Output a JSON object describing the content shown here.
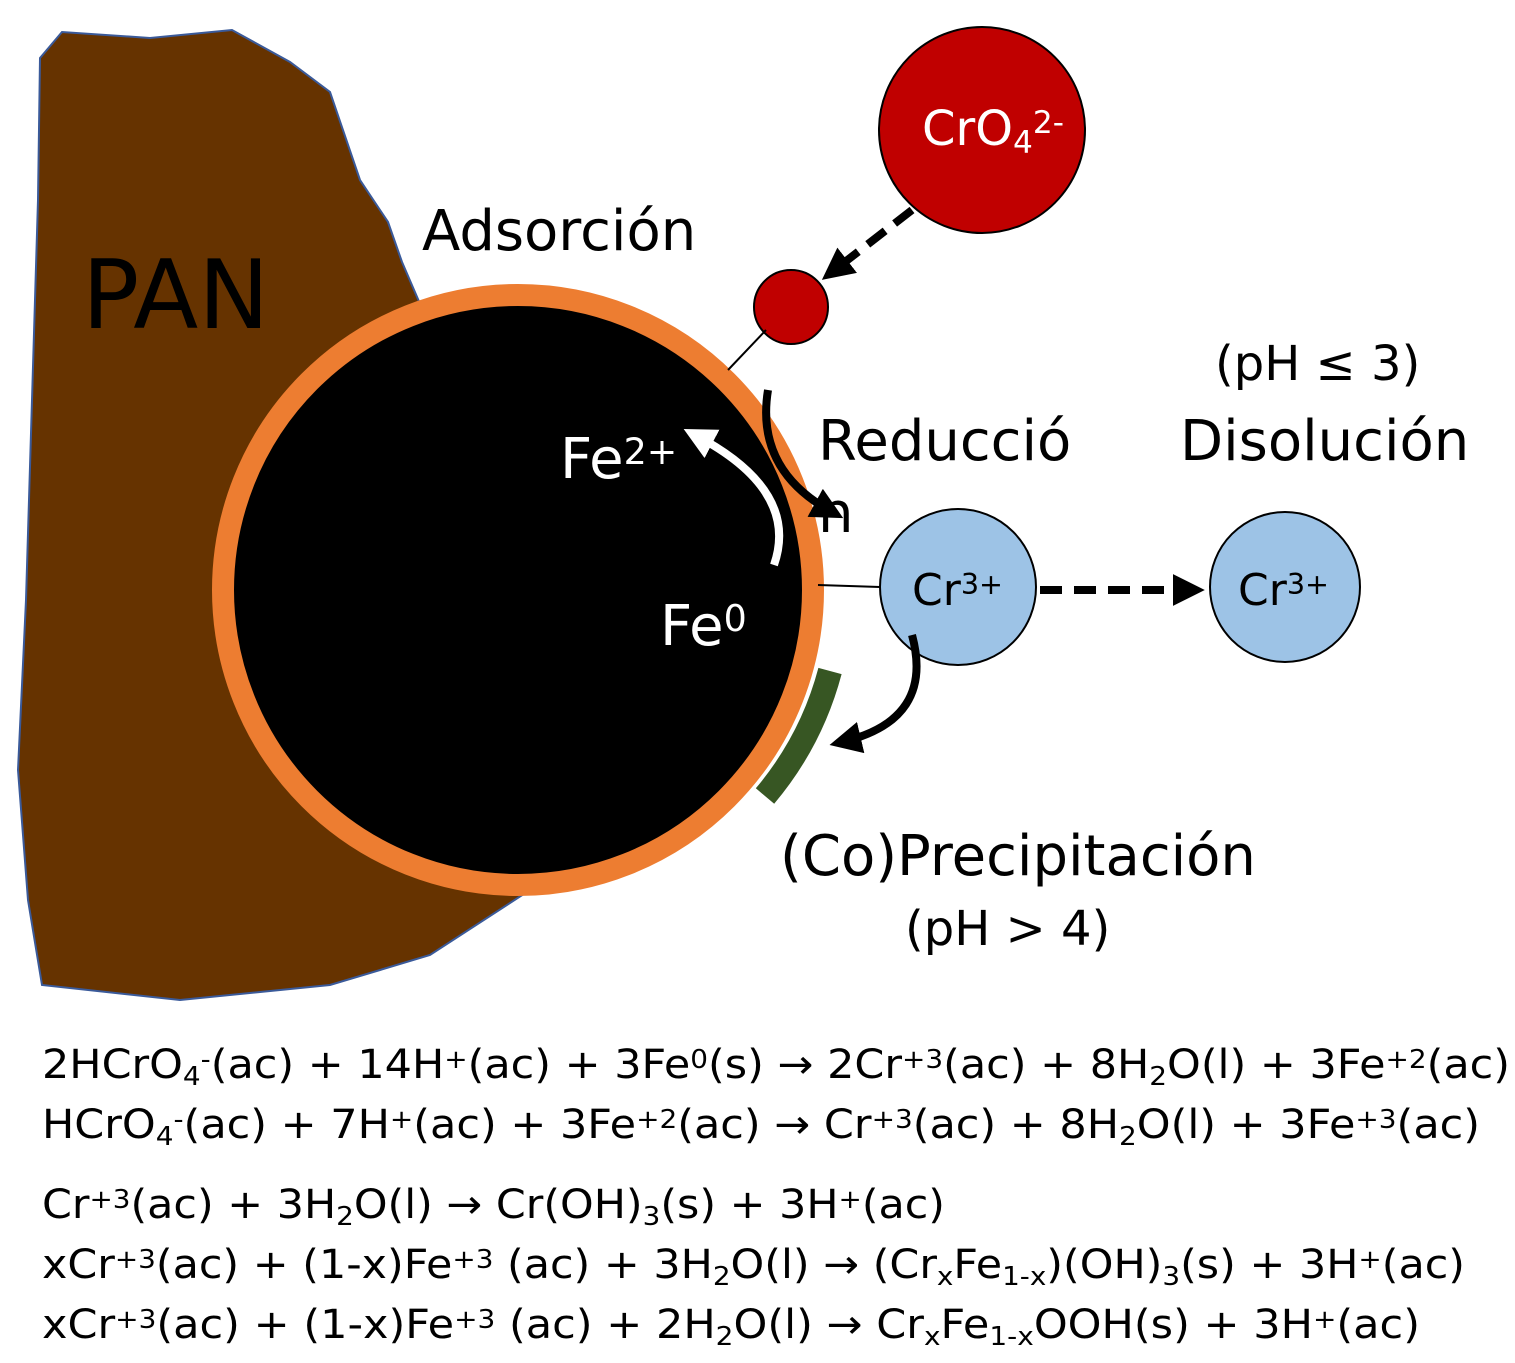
{
  "labels": {
    "pan": "PAN",
    "adsorcion": "Adsorción",
    "chromate": [
      {
        "text": "CrO"
      },
      {
        "sub": "4"
      },
      {
        "sup": "2-"
      }
    ],
    "fe2": [
      {
        "text": "Fe"
      },
      {
        "sup": "2+"
      }
    ],
    "fe0": [
      {
        "text": "Fe"
      },
      {
        "sup": "0"
      }
    ],
    "reduccion": [
      "Reducció",
      "n"
    ],
    "ph_low": "(pH ≤ 3)",
    "disolucion": "Disolución",
    "cr3_surface": [
      {
        "text": "Cr"
      },
      {
        "sup": "3+"
      }
    ],
    "cr3_solution": [
      {
        "text": "Cr"
      },
      {
        "sup": "3+"
      }
    ],
    "precipitacion": "(Co)Precipitación",
    "ph_high": "(pH > 4)"
  },
  "equations": [
    [
      {
        "text": "2HCrO"
      },
      {
        "sub": "4"
      },
      {
        "sup": "-"
      },
      {
        "text": "(ac) + 14H"
      },
      {
        "sup": "+"
      },
      {
        "text": "(ac) + 3Fe"
      },
      {
        "sup": "0"
      },
      {
        "text": "(s) → 2Cr"
      },
      {
        "sup": "+3"
      },
      {
        "text": "(ac) + 8H"
      },
      {
        "sub": "2"
      },
      {
        "text": "O(l) + 3Fe"
      },
      {
        "sup": "+2"
      },
      {
        "text": "(ac)"
      }
    ],
    [
      {
        "text": "HCrO"
      },
      {
        "sub": "4"
      },
      {
        "sup": "-"
      },
      {
        "text": "(ac) + 7H"
      },
      {
        "sup": "+"
      },
      {
        "text": "(ac) + 3Fe"
      },
      {
        "sup": "+2"
      },
      {
        "text": "(ac) → Cr"
      },
      {
        "sup": "+3"
      },
      {
        "text": "(ac) + 8H"
      },
      {
        "sub": "2"
      },
      {
        "text": "O(l) + 3Fe"
      },
      {
        "sup": "+3"
      },
      {
        "text": "(ac)"
      }
    ],
    [
      {
        "text": "Cr"
      },
      {
        "sup": "+3"
      },
      {
        "text": "(ac) + 3H"
      },
      {
        "sub": "2"
      },
      {
        "text": "O(l) → Cr(OH)"
      },
      {
        "sub": "3"
      },
      {
        "text": "(s) + 3H"
      },
      {
        "sup": "+"
      },
      {
        "text": "(ac)"
      }
    ],
    [
      {
        "text": "xCr"
      },
      {
        "sup": "+3"
      },
      {
        "text": "(ac) + (1-x)Fe"
      },
      {
        "sup": "+3"
      },
      {
        "text": " (ac) + 3H"
      },
      {
        "sub": "2"
      },
      {
        "text": "O(l) → (Cr"
      },
      {
        "sub": "x"
      },
      {
        "text": "Fe"
      },
      {
        "sub": "1-x"
      },
      {
        "text": ")(OH)"
      },
      {
        "sub": "3"
      },
      {
        "text": "(s) + 3H"
      },
      {
        "sup": "+"
      },
      {
        "text": "(ac)"
      }
    ],
    [
      {
        "text": "xCr"
      },
      {
        "sup": "+3"
      },
      {
        "text": "(ac) + (1-x)Fe"
      },
      {
        "sup": "+3"
      },
      {
        "text": " (ac) + 2H"
      },
      {
        "sub": "2"
      },
      {
        "text": "O(l) → Cr"
      },
      {
        "sub": "x"
      },
      {
        "text": "Fe"
      },
      {
        "sub": "1-x"
      },
      {
        "text": "OOH(s) + 3H"
      },
      {
        "sup": "+"
      },
      {
        "text": "(ac)"
      }
    ]
  ]
}
